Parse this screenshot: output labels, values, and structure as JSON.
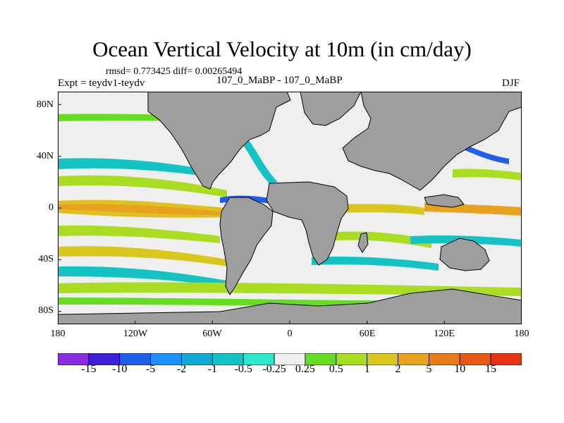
{
  "figure": {
    "title": "Ocean Vertical Velocity at 10m (in cm/day)",
    "stats": "rmsd= 0.773425 diff= 0.00265494",
    "experiment": "Expt = teydv1-teydv",
    "subtitle": "107_0_MaBP - 107_0_MaBP",
    "season": "DJF"
  },
  "map": {
    "projection": "cylindrical equidistant",
    "lon_range": [
      -180,
      180
    ],
    "lat_range": [
      -90,
      90
    ],
    "land_color": "#9e9e9e",
    "ocean_neutral_color": "#efefef",
    "y_ticks": [
      {
        "label": "80N",
        "lat": 80
      },
      {
        "label": "40N",
        "lat": 40
      },
      {
        "label": "0",
        "lat": 0
      },
      {
        "label": "40S",
        "lat": -40
      },
      {
        "label": "80S",
        "lat": -80
      }
    ],
    "x_ticks": [
      {
        "label": "180",
        "lon": -180
      },
      {
        "label": "120W",
        "lon": -120
      },
      {
        "label": "60W",
        "lon": -60
      },
      {
        "label": "0",
        "lon": 0
      },
      {
        "label": "60E",
        "lon": 60
      },
      {
        "label": "120E",
        "lon": 120
      },
      {
        "label": "180",
        "lon": 180
      }
    ]
  },
  "colorbar": {
    "labels": [
      "-15",
      "-10",
      "-5",
      "-2",
      "-1",
      "-0.5",
      "-0.25",
      "0.25",
      "0.5",
      "1",
      "2",
      "5",
      "10",
      "15"
    ],
    "colors": [
      "#8a2be2",
      "#3d1fd6",
      "#1f5fe8",
      "#1e90ff",
      "#12a8d8",
      "#14c4c4",
      "#2ee6c8",
      "#efefef",
      "#66dd22",
      "#aadd22",
      "#d8c81e",
      "#e8a21e",
      "#e87a1a",
      "#e85a14",
      "#e83214"
    ]
  }
}
